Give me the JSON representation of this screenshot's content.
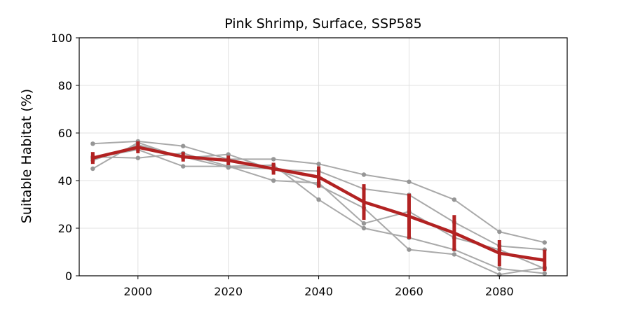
{
  "chart_data": {
    "type": "line",
    "title": "Pink Shrimp, Surface, SSP585",
    "xlabel": "",
    "ylabel": "Suitable Habitat (%)",
    "xlim": [
      1987,
      2095
    ],
    "ylim": [
      0,
      100
    ],
    "xticks": [
      2000,
      2020,
      2040,
      2060,
      2080
    ],
    "yticks": [
      0,
      20,
      40,
      60,
      80,
      100
    ],
    "grid": true,
    "x": [
      1990,
      2000,
      2010,
      2020,
      2030,
      2040,
      2050,
      2060,
      2070,
      2080,
      2090
    ],
    "members": [
      {
        "values": [
          55.5,
          56.5,
          54.5,
          49.0,
          49.0,
          47.0,
          42.5,
          39.5,
          32.0,
          18.5,
          14.0
        ]
      },
      {
        "values": [
          45.0,
          56.0,
          49.5,
          51.0,
          44.5,
          44.0,
          36.5,
          34.0,
          22.5,
          12.5,
          11.0
        ]
      },
      {
        "values": [
          49.5,
          53.0,
          46.0,
          46.0,
          40.0,
          39.0,
          22.0,
          27.0,
          16.0,
          11.0,
          3.0
        ]
      },
      {
        "values": [
          50.0,
          49.5,
          51.5,
          46.0,
          46.5,
          32.0,
          20.0,
          16.0,
          11.0,
          3.0,
          1.0
        ]
      },
      {
        "values": [
          48.5,
          55.0,
          50.0,
          45.5,
          45.0,
          38.0,
          28.5,
          11.0,
          9.0,
          0.5,
          3.5
        ]
      }
    ],
    "mean": {
      "values": [
        49.5,
        54.0,
        50.0,
        48.5,
        45.0,
        41.5,
        31.0,
        25.0,
        18.0,
        9.5,
        6.5
      ],
      "err": [
        2.5,
        2.5,
        2.0,
        2.0,
        2.5,
        4.5,
        7.5,
        9.5,
        7.5,
        5.5,
        4.5
      ]
    },
    "colors": {
      "members": "#a9a9a9",
      "member_markers": "#969696",
      "mean": "#b22222",
      "grid": "#e0e0e0"
    }
  }
}
